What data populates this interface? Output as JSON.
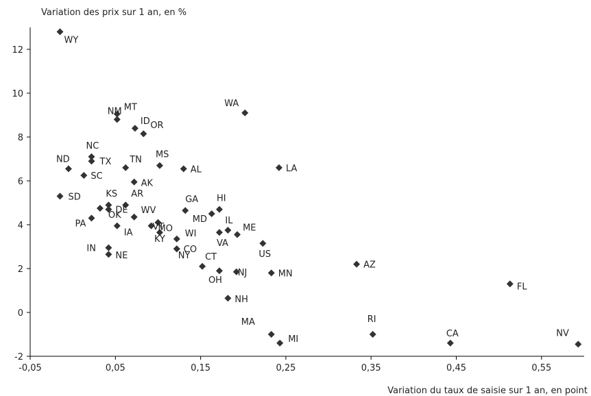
{
  "chart_data": {
    "type": "scatter",
    "ylabel": "Variation des prix sur 1 an, en %",
    "xlabel": "Variation du taux de saisie sur 1 an, en point",
    "xlim": [
      -0.05,
      0.6
    ],
    "ylim": [
      -2,
      13
    ],
    "x_ticks": [
      -0.05,
      0.05,
      0.15,
      0.25,
      0.35,
      0.45,
      0.55
    ],
    "x_tick_labels": [
      "-0,05",
      "0,05",
      "0,15",
      "0,25",
      "0,35",
      "0,45",
      "0,55"
    ],
    "y_ticks": [
      -2,
      0,
      2,
      4,
      6,
      8,
      10,
      12
    ],
    "y_tick_labels": [
      "-2",
      "0",
      "2",
      "4",
      "6",
      "8",
      "10",
      "12"
    ],
    "grid": false,
    "marker_color": "#333333",
    "points": [
      {
        "label": "WY",
        "x": -0.015,
        "y": 12.8
      },
      {
        "label": "WA",
        "x": 0.202,
        "y": 9.1
      },
      {
        "label": "MT",
        "x": 0.052,
        "y": 9.05
      },
      {
        "label": "NM",
        "x": 0.052,
        "y": 8.8
      },
      {
        "label": "ID",
        "x": 0.073,
        "y": 8.4
      },
      {
        "label": "OR",
        "x": 0.083,
        "y": 8.15
      },
      {
        "label": "NC",
        "x": 0.022,
        "y": 7.1
      },
      {
        "label": "TX",
        "x": 0.022,
        "y": 6.9
      },
      {
        "label": "TN",
        "x": 0.062,
        "y": 6.6
      },
      {
        "label": "MS",
        "x": 0.102,
        "y": 6.7
      },
      {
        "label": "AL",
        "x": 0.13,
        "y": 6.55
      },
      {
        "label": "LA",
        "x": 0.242,
        "y": 6.6
      },
      {
        "label": "ND",
        "x": -0.005,
        "y": 6.55
      },
      {
        "label": "SC",
        "x": 0.013,
        "y": 6.25
      },
      {
        "label": "AK",
        "x": 0.072,
        "y": 5.95
      },
      {
        "label": "SD",
        "x": -0.015,
        "y": 5.3
      },
      {
        "label": "KS",
        "x": 0.042,
        "y": 4.9
      },
      {
        "label": "AR",
        "x": 0.062,
        "y": 4.9
      },
      {
        "label": "DE",
        "x": 0.042,
        "y": 4.7
      },
      {
        "label": "OK",
        "x": 0.032,
        "y": 4.75
      },
      {
        "label": "GA",
        "x": 0.132,
        "y": 4.65
      },
      {
        "label": "HI",
        "x": 0.172,
        "y": 4.7
      },
      {
        "label": "WV",
        "x": 0.072,
        "y": 4.35
      },
      {
        "label": "PA",
        "x": 0.022,
        "y": 4.3
      },
      {
        "label": "VT",
        "x": 0.1,
        "y": 4.1
      },
      {
        "label": "MD",
        "x": 0.163,
        "y": 4.5
      },
      {
        "label": "IA",
        "x": 0.052,
        "y": 3.95
      },
      {
        "label": "MO",
        "x": 0.092,
        "y": 3.95
      },
      {
        "label": "IL",
        "x": 0.182,
        "y": 3.75
      },
      {
        "label": "ME",
        "x": 0.193,
        "y": 3.55
      },
      {
        "label": "VA",
        "x": 0.172,
        "y": 3.65
      },
      {
        "label": "KY",
        "x": 0.102,
        "y": 3.65
      },
      {
        "label": "WI",
        "x": 0.122,
        "y": 3.35
      },
      {
        "label": "US",
        "x": 0.223,
        "y": 3.15
      },
      {
        "label": "IN",
        "x": 0.042,
        "y": 2.95
      },
      {
        "label": "CO",
        "x": 0.122,
        "y": 2.9
      },
      {
        "label": "NY",
        "x": 0.122,
        "y": 2.9
      },
      {
        "label": "NE",
        "x": 0.042,
        "y": 2.65
      },
      {
        "label": "AZ",
        "x": 0.333,
        "y": 2.2
      },
      {
        "label": "CT",
        "x": 0.152,
        "y": 2.1
      },
      {
        "label": "OH",
        "x": 0.172,
        "y": 1.9
      },
      {
        "label": "NJ",
        "x": 0.192,
        "y": 1.85
      },
      {
        "label": "MN",
        "x": 0.233,
        "y": 1.8
      },
      {
        "label": "FL",
        "x": 0.513,
        "y": 1.3
      },
      {
        "label": "NH",
        "x": 0.182,
        "y": 0.65
      },
      {
        "label": "RI",
        "x": 0.352,
        "y": -1.0
      },
      {
        "label": "MA",
        "x": 0.233,
        "y": -1.0
      },
      {
        "label": "MI",
        "x": 0.243,
        "y": -1.4
      },
      {
        "label": "CA",
        "x": 0.443,
        "y": -1.4
      },
      {
        "label": "NV",
        "x": 0.593,
        "y": -1.45
      }
    ]
  }
}
